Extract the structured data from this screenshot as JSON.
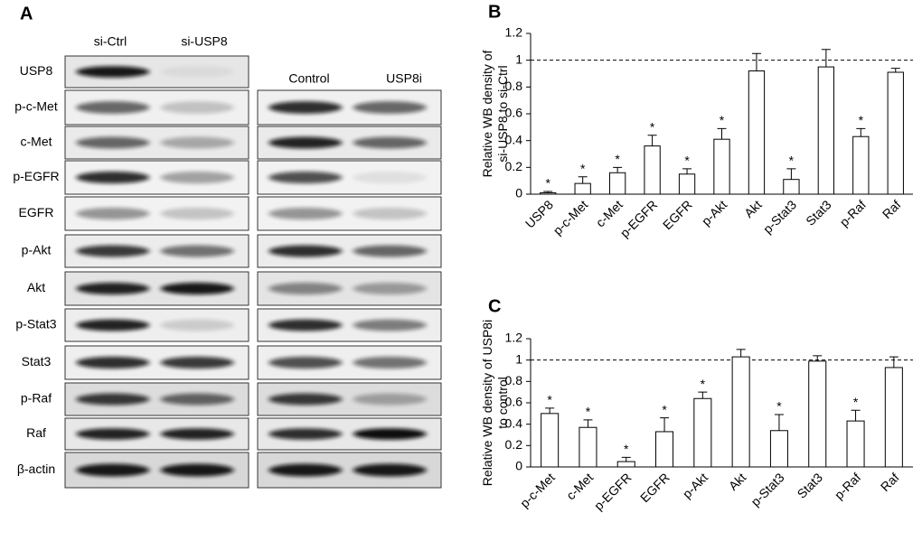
{
  "panel_a": {
    "label": "A",
    "left_columns": [
      "si-Ctrl",
      "si-USP8"
    ],
    "right_columns": [
      "Control",
      "USP8i"
    ],
    "rows": [
      "USP8",
      "p-c-Met",
      "c-Met",
      "p-EGFR",
      "EGFR",
      "p-Akt",
      "Akt",
      "p-Stat3",
      "Stat3",
      "p-Raf",
      "Raf",
      "β-actin"
    ]
  },
  "chart_data": [
    {
      "type": "bar",
      "panel_label": "B",
      "y_label": [
        "Relative WB density of",
        "si-USP8 to si-Ctrl"
      ],
      "categories": [
        "USP8",
        "p-c-Met",
        "c-Met",
        "p-EGFR",
        "EGFR",
        "p-Akt",
        "Akt",
        "p-Stat3",
        "Stat3",
        "p-Raf",
        "Raf"
      ],
      "values": [
        0.01,
        0.08,
        0.16,
        0.36,
        0.15,
        0.41,
        0.92,
        0.11,
        0.95,
        0.43,
        0.91
      ],
      "errors": [
        0.01,
        0.05,
        0.04,
        0.08,
        0.04,
        0.08,
        0.13,
        0.08,
        0.13,
        0.06,
        0.03
      ],
      "significance": [
        "*",
        "*",
        "*",
        "*",
        "*",
        "*",
        null,
        "*",
        null,
        "*",
        null
      ],
      "color": "#ffffff",
      "reference_line": 1,
      "ylim": [
        0,
        1.2
      ],
      "yticks": [
        0,
        0.2,
        0.4,
        0.6,
        0.8,
        1,
        1.2
      ]
    },
    {
      "type": "bar",
      "panel_label": "C",
      "y_label": [
        "Relative WB density of USP8i",
        "to control"
      ],
      "categories": [
        "p-c-Met",
        "c-Met",
        "p-EGFR",
        "EGFR",
        "p-Akt",
        "Akt",
        "p-Stat3",
        "Stat3",
        "p-Raf",
        "Raf"
      ],
      "values": [
        0.5,
        0.37,
        0.05,
        0.33,
        0.64,
        1.03,
        0.34,
        0.99,
        0.43,
        0.93
      ],
      "errors": [
        0.05,
        0.07,
        0.04,
        0.13,
        0.06,
        0.07,
        0.15,
        0.05,
        0.1,
        0.1
      ],
      "significance": [
        "*",
        "*",
        "*",
        "*",
        "*",
        null,
        "*",
        null,
        "*",
        null
      ],
      "color": "#ffffff",
      "reference_line": 1,
      "ylim": [
        0,
        1.2
      ],
      "yticks": [
        0,
        0.2,
        0.4,
        0.6,
        0.8,
        1,
        1.2
      ]
    }
  ]
}
